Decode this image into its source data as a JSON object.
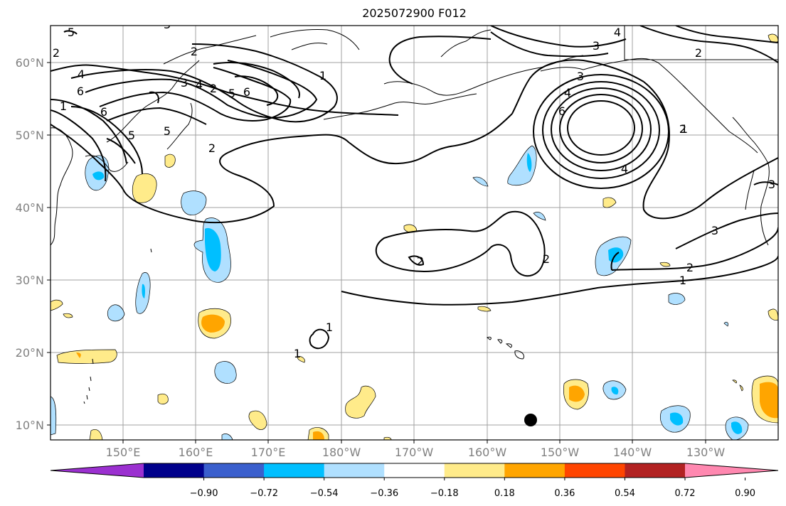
{
  "title": "2025072900 F012",
  "lat_labels": [
    "60°N",
    "50°N",
    "40°N",
    "30°N",
    "20°N",
    "10°N"
  ],
  "lon_labels": [
    "150°E",
    "160°E",
    "170°E",
    "180°W",
    "170°W",
    "160°W",
    "150°W",
    "140°W",
    "130°W"
  ],
  "colorbar": {
    "colors": [
      "#9b30d0",
      "#00008b",
      "#3a5fcd",
      "#00bfff",
      "#b0e0ff",
      "#ffffff",
      "#ffeb8a",
      "#ffa500",
      "#ff4500",
      "#b22222",
      "#ff88b0"
    ],
    "tick_labels": [
      "−0.90",
      "−0.72",
      "−0.54",
      "−0.36",
      "−0.18",
      "0.18",
      "0.36",
      "0.54",
      "0.72",
      "0.90"
    ]
  },
  "contour_labels": [
    "5",
    "3",
    "4",
    "3",
    "2",
    "1",
    "4",
    "3",
    "2",
    "4",
    "6",
    "6",
    "5",
    "2",
    "5",
    "6",
    "4",
    "2",
    "1",
    "2",
    "2",
    "4",
    "3",
    "6",
    "1",
    "5",
    "1",
    "2",
    "3",
    "3",
    "2",
    "1",
    "1",
    "2"
  ],
  "marker": "filled-black-dot"
}
